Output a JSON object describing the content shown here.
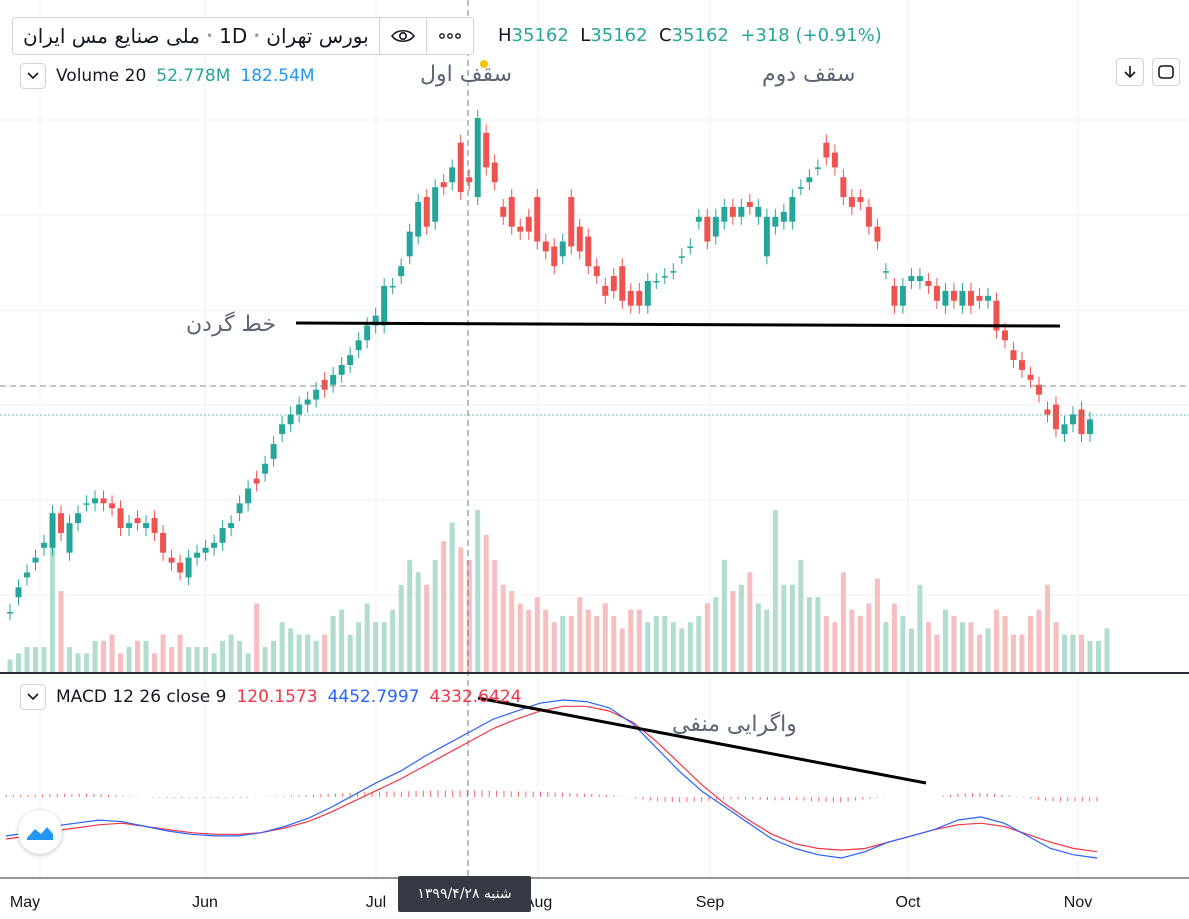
{
  "header": {
    "symbol": "ملی صنایع مس ایران",
    "interval": "1D",
    "exchange": "بورس تهران",
    "eye_icon": "eye-icon",
    "more_icon": "more-icon",
    "ohlc": {
      "h_label": "H",
      "h": "35162",
      "l_label": "L",
      "l": "35162",
      "c_label": "C",
      "c": "35162",
      "change": "+318 (+0.91%)"
    }
  },
  "volume_legend": {
    "name": "Volume 20",
    "v1": "52.778M",
    "v2": "182.54M"
  },
  "macd_legend": {
    "name": "MACD 12 26 close 9",
    "hist": "120.1573",
    "macd": "4452.7997",
    "signal": "4332.6424"
  },
  "annotations": {
    "top1": "سقف اول",
    "top2": "سقف دوم",
    "neckline": "خط گردن",
    "divergence": "واگرایی منفی"
  },
  "crosshair_date": "شنبه ۱۳۹۹/۴/۲۸",
  "x_axis_labels": [
    "May",
    "Jun",
    "Jul",
    "Aug",
    "Sep",
    "Oct",
    "Nov"
  ],
  "colors": {
    "up": "#26a69a",
    "down": "#ef5350",
    "macd": "#2962ff",
    "signal": "#f23645",
    "text_up": "#26a69a",
    "blue_val": "#2196f3"
  },
  "chart_data": {
    "type": "candlestick",
    "candles_per_month_approx": 24,
    "candles": [
      {
        "o": 0.0,
        "c": 0.0
      },
      {
        "o": 0.03,
        "c": 0.05
      },
      {
        "o": 0.07,
        "c": 0.08
      },
      {
        "o": 0.1,
        "c": 0.11
      },
      {
        "o": 0.13,
        "c": 0.14
      },
      {
        "o": 0.13,
        "c": 0.2
      },
      {
        "o": 0.2,
        "c": 0.16
      },
      {
        "o": 0.12,
        "c": 0.18
      },
      {
        "o": 0.18,
        "c": 0.2
      },
      {
        "o": 0.22,
        "c": 0.22
      },
      {
        "o": 0.22,
        "c": 0.23
      },
      {
        "o": 0.23,
        "c": 0.22
      },
      {
        "o": 0.22,
        "c": 0.21
      },
      {
        "o": 0.21,
        "c": 0.17
      },
      {
        "o": 0.17,
        "c": 0.18
      },
      {
        "o": 0.19,
        "c": 0.18
      },
      {
        "o": 0.17,
        "c": 0.18
      },
      {
        "o": 0.19,
        "c": 0.16
      },
      {
        "o": 0.16,
        "c": 0.12
      },
      {
        "o": 0.11,
        "c": 0.1
      },
      {
        "o": 0.1,
        "c": 0.08
      },
      {
        "o": 0.07,
        "c": 0.11
      },
      {
        "o": 0.11,
        "c": 0.12
      },
      {
        "o": 0.12,
        "c": 0.13
      },
      {
        "o": 0.13,
        "c": 0.14
      },
      {
        "o": 0.14,
        "c": 0.17
      },
      {
        "o": 0.17,
        "c": 0.18
      },
      {
        "o": 0.2,
        "c": 0.22
      },
      {
        "o": 0.22,
        "c": 0.25
      },
      {
        "o": 0.27,
        "c": 0.26
      },
      {
        "o": 0.28,
        "c": 0.3
      },
      {
        "o": 0.31,
        "c": 0.34
      },
      {
        "o": 0.36,
        "c": 0.38
      },
      {
        "o": 0.38,
        "c": 0.4
      },
      {
        "o": 0.4,
        "c": 0.42
      },
      {
        "o": 0.42,
        "c": 0.43
      },
      {
        "o": 0.43,
        "c": 0.45
      },
      {
        "o": 0.47,
        "c": 0.45
      },
      {
        "o": 0.46,
        "c": 0.48
      },
      {
        "o": 0.48,
        "c": 0.5
      },
      {
        "o": 0.5,
        "c": 0.52
      },
      {
        "o": 0.53,
        "c": 0.55
      },
      {
        "o": 0.55,
        "c": 0.58
      },
      {
        "o": 0.58,
        "c": 0.6
      },
      {
        "o": 0.58,
        "c": 0.66
      },
      {
        "o": 0.66,
        "c": 0.66
      },
      {
        "o": 0.68,
        "c": 0.7
      },
      {
        "o": 0.72,
        "c": 0.77
      },
      {
        "o": 0.76,
        "c": 0.83
      },
      {
        "o": 0.84,
        "c": 0.78
      },
      {
        "o": 0.79,
        "c": 0.86
      },
      {
        "o": 0.87,
        "c": 0.86
      },
      {
        "o": 0.87,
        "c": 0.9
      },
      {
        "o": 0.95,
        "c": 0.85
      },
      {
        "o": 0.88,
        "c": 0.87
      },
      {
        "o": 0.84,
        "c": 1.0
      },
      {
        "o": 0.97,
        "c": 0.9
      },
      {
        "o": 0.91,
        "c": 0.87
      },
      {
        "o": 0.82,
        "c": 0.8
      },
      {
        "o": 0.84,
        "c": 0.78
      },
      {
        "o": 0.78,
        "c": 0.77
      },
      {
        "o": 0.8,
        "c": 0.77
      },
      {
        "o": 0.84,
        "c": 0.75
      },
      {
        "o": 0.75,
        "c": 0.73
      },
      {
        "o": 0.74,
        "c": 0.7
      },
      {
        "o": 0.72,
        "c": 0.75
      },
      {
        "o": 0.84,
        "c": 0.74
      },
      {
        "o": 0.78,
        "c": 0.73
      },
      {
        "o": 0.76,
        "c": 0.7
      },
      {
        "o": 0.7,
        "c": 0.68
      },
      {
        "o": 0.66,
        "c": 0.64
      },
      {
        "o": 0.68,
        "c": 0.65
      },
      {
        "o": 0.7,
        "c": 0.63
      },
      {
        "o": 0.65,
        "c": 0.62
      },
      {
        "o": 0.65,
        "c": 0.62
      },
      {
        "o": 0.62,
        "c": 0.67
      },
      {
        "o": 0.67,
        "c": 0.67
      },
      {
        "o": 0.68,
        "c": 0.68
      },
      {
        "o": 0.69,
        "c": 0.69
      },
      {
        "o": 0.72,
        "c": 0.72
      },
      {
        "o": 0.74,
        "c": 0.74
      },
      {
        "o": 0.79,
        "c": 0.8
      },
      {
        "o": 0.8,
        "c": 0.75
      },
      {
        "o": 0.76,
        "c": 0.8
      },
      {
        "o": 0.79,
        "c": 0.82
      },
      {
        "o": 0.82,
        "c": 0.8
      },
      {
        "o": 0.8,
        "c": 0.82
      },
      {
        "o": 0.83,
        "c": 0.82
      },
      {
        "o": 0.8,
        "c": 0.82
      },
      {
        "o": 0.72,
        "c": 0.8
      },
      {
        "o": 0.78,
        "c": 0.8
      },
      {
        "o": 0.79,
        "c": 0.81
      },
      {
        "o": 0.79,
        "c": 0.84
      },
      {
        "o": 0.86,
        "c": 0.86
      },
      {
        "o": 0.87,
        "c": 0.88
      },
      {
        "o": 0.9,
        "c": 0.9
      },
      {
        "o": 0.95,
        "c": 0.92
      },
      {
        "o": 0.93,
        "c": 0.9
      },
      {
        "o": 0.88,
        "c": 0.84
      },
      {
        "o": 0.84,
        "c": 0.82
      },
      {
        "o": 0.84,
        "c": 0.83
      },
      {
        "o": 0.82,
        "c": 0.78
      },
      {
        "o": 0.78,
        "c": 0.75
      },
      {
        "o": 0.69,
        "c": 0.69
      },
      {
        "o": 0.66,
        "c": 0.62
      },
      {
        "o": 0.62,
        "c": 0.66
      },
      {
        "o": 0.67,
        "c": 0.68
      },
      {
        "o": 0.67,
        "c": 0.68
      },
      {
        "o": 0.67,
        "c": 0.66
      },
      {
        "o": 0.66,
        "c": 0.63
      },
      {
        "o": 0.62,
        "c": 0.65
      },
      {
        "o": 0.65,
        "c": 0.63
      },
      {
        "o": 0.62,
        "c": 0.65
      },
      {
        "o": 0.65,
        "c": 0.62
      },
      {
        "o": 0.64,
        "c": 0.63
      },
      {
        "o": 0.63,
        "c": 0.64
      },
      {
        "o": 0.63,
        "c": 0.57
      },
      {
        "o": 0.57,
        "c": 0.55
      },
      {
        "o": 0.53,
        "c": 0.51
      },
      {
        "o": 0.51,
        "c": 0.49
      },
      {
        "o": 0.48,
        "c": 0.47
      },
      {
        "o": 0.46,
        "c": 0.44
      },
      {
        "o": 0.41,
        "c": 0.4
      },
      {
        "o": 0.42,
        "c": 0.37
      },
      {
        "o": 0.36,
        "c": 0.38
      },
      {
        "o": 0.38,
        "c": 0.4
      },
      {
        "o": 0.41,
        "c": 0.36
      },
      {
        "o": 0.36,
        "c": 0.39
      }
    ],
    "volume": [
      2,
      3,
      4,
      4,
      4,
      22,
      13,
      4,
      3,
      3,
      5,
      5,
      6,
      3,
      4,
      5,
      5,
      3,
      6,
      4,
      6,
      4,
      4,
      4,
      3,
      5,
      6,
      5,
      3,
      11,
      4,
      5,
      8,
      7,
      6,
      6,
      5,
      6,
      9,
      10,
      6,
      8,
      11,
      8,
      8,
      10,
      14,
      18,
      16,
      14,
      18,
      21,
      24,
      20,
      18,
      26,
      22,
      18,
      14,
      13,
      11,
      10,
      12,
      10,
      8,
      9,
      9,
      12,
      10,
      9,
      11,
      9,
      7,
      10,
      10,
      8,
      9,
      9,
      8,
      7,
      8,
      9,
      11,
      12,
      18,
      13,
      14,
      16,
      11,
      10,
      26,
      14,
      14,
      18,
      12,
      12,
      9,
      8,
      16,
      10,
      9,
      11,
      15,
      8,
      11,
      9,
      7,
      14,
      8,
      6,
      10,
      9,
      8,
      8,
      6,
      7,
      10,
      9,
      6,
      6,
      9,
      10,
      14,
      8,
      6,
      6,
      6,
      5,
      5,
      7
    ],
    "macd": [
      0.14,
      0.16,
      0.2,
      0.22,
      0.24,
      0.23,
      0.2,
      0.17,
      0.15,
      0.14,
      0.14,
      0.16,
      0.2,
      0.25,
      0.32,
      0.4,
      0.48,
      0.55,
      0.64,
      0.72,
      0.8,
      0.88,
      0.93,
      0.98,
      1.0,
      0.99,
      0.95,
      0.85,
      0.7,
      0.55,
      0.42,
      0.32,
      0.22,
      0.12,
      0.06,
      0.02,
      0.0,
      0.04,
      0.1,
      0.14,
      0.18,
      0.24,
      0.26,
      0.22,
      0.14,
      0.06,
      0.02,
      0.0
    ],
    "signal": [
      0.12,
      0.14,
      0.17,
      0.19,
      0.21,
      0.22,
      0.2,
      0.18,
      0.16,
      0.15,
      0.15,
      0.16,
      0.19,
      0.23,
      0.29,
      0.36,
      0.43,
      0.5,
      0.58,
      0.66,
      0.74,
      0.82,
      0.88,
      0.93,
      0.96,
      0.96,
      0.93,
      0.86,
      0.74,
      0.6,
      0.46,
      0.34,
      0.24,
      0.15,
      0.09,
      0.06,
      0.05,
      0.06,
      0.1,
      0.14,
      0.18,
      0.21,
      0.22,
      0.2,
      0.15,
      0.1,
      0.06,
      0.04
    ]
  }
}
